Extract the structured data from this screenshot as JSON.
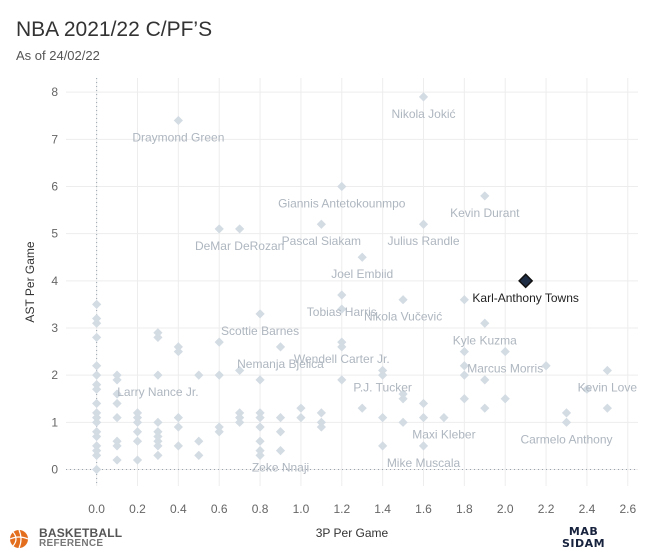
{
  "title": "NBA 2021/22 C/PF’S",
  "subtitle": "As of 24/02/22",
  "logos": {
    "bbref_line1": "BASKETBALL",
    "bbref_line2": "REFERENCE",
    "mab_line1": "MAB",
    "mab_line2": "SIDAM"
  },
  "colors": {
    "point": "#d3dbe3",
    "label": "#aeb6bf",
    "highlight_fill": "#1f2d44",
    "highlight_stroke": "#111111",
    "grid": "#ededed",
    "bbref_icon": "#e36f1e"
  },
  "chart_data": {
    "type": "scatter",
    "title": "NBA 2021/22 C/PF’S",
    "subtitle": "As of 24/02/22",
    "xlabel": "3P Per Game",
    "ylabel": "AST Per Game",
    "xlim": [
      -0.15,
      2.65
    ],
    "ylim": [
      -0.35,
      8.3
    ],
    "xticks": [
      "0.0",
      "0.2",
      "0.4",
      "0.6",
      "0.8",
      "1.0",
      "1.2",
      "1.4",
      "1.6",
      "1.8",
      "2.0",
      "2.2",
      "2.4",
      "2.6"
    ],
    "yticks": [
      "0",
      "1",
      "2",
      "3",
      "4",
      "5",
      "6",
      "7",
      "8"
    ],
    "grid": true,
    "highlight": {
      "name": "Karl-Anthony Towns",
      "x": 2.1,
      "y": 4.0
    },
    "labeled": [
      {
        "name": "Nikola Jokić",
        "x": 1.6,
        "y": 7.9
      },
      {
        "name": "Draymond Green",
        "x": 0.4,
        "y": 7.4
      },
      {
        "name": "Giannis Antetokounmpo",
        "x": 1.2,
        "y": 6.0
      },
      {
        "name": "Kevin Durant",
        "x": 1.9,
        "y": 5.8
      },
      {
        "name": "Pascal Siakam",
        "x": 1.1,
        "y": 5.2
      },
      {
        "name": "Julius Randle",
        "x": 1.6,
        "y": 5.2
      },
      {
        "name": "DeMar DeRozan",
        "x": 0.7,
        "y": 5.1
      },
      {
        "name": "Joel Embiid",
        "x": 1.3,
        "y": 4.5
      },
      {
        "name": "Tobias Harris",
        "x": 1.2,
        "y": 3.7
      },
      {
        "name": "Nikola Vučević",
        "x": 1.5,
        "y": 3.6
      },
      {
        "name": "Scottie Barnes",
        "x": 0.8,
        "y": 3.3
      },
      {
        "name": "Kyle Kuzma",
        "x": 1.9,
        "y": 3.1
      },
      {
        "name": "Wendell Carter Jr.",
        "x": 1.2,
        "y": 2.7
      },
      {
        "name": "Nemanja Bjelica",
        "x": 0.9,
        "y": 2.6
      },
      {
        "name": "Marcus Morris",
        "x": 2.0,
        "y": 2.5
      },
      {
        "name": "P.J. Tucker",
        "x": 1.4,
        "y": 2.1
      },
      {
        "name": "Kevin Love",
        "x": 2.5,
        "y": 2.1
      },
      {
        "name": "Larry Nance Jr.",
        "x": 0.3,
        "y": 2.0
      },
      {
        "name": "Maxi Kleber",
        "x": 1.7,
        "y": 1.1
      },
      {
        "name": "Carmelo Anthony",
        "x": 2.3,
        "y": 1.0
      },
      {
        "name": "Zeke Nnaji",
        "x": 0.9,
        "y": 0.4
      },
      {
        "name": "Mike Muscala",
        "x": 1.6,
        "y": 0.5
      }
    ],
    "points": [
      [
        0.0,
        3.5
      ],
      [
        0.0,
        3.2
      ],
      [
        0.0,
        3.1
      ],
      [
        0.0,
        2.8
      ],
      [
        0.0,
        2.2
      ],
      [
        0.0,
        2.0
      ],
      [
        0.0,
        1.8
      ],
      [
        0.0,
        1.7
      ],
      [
        0.0,
        1.4
      ],
      [
        0.0,
        1.2
      ],
      [
        0.0,
        1.1
      ],
      [
        0.0,
        1.0
      ],
      [
        0.0,
        0.8
      ],
      [
        0.0,
        0.7
      ],
      [
        0.0,
        0.5
      ],
      [
        0.0,
        0.4
      ],
      [
        0.0,
        0.3
      ],
      [
        0.0,
        0.0
      ],
      [
        0.1,
        2.0
      ],
      [
        0.1,
        1.9
      ],
      [
        0.1,
        1.6
      ],
      [
        0.1,
        1.4
      ],
      [
        0.1,
        1.1
      ],
      [
        0.1,
        0.6
      ],
      [
        0.1,
        0.5
      ],
      [
        0.1,
        0.2
      ],
      [
        0.2,
        1.2
      ],
      [
        0.2,
        1.1
      ],
      [
        0.2,
        1.0
      ],
      [
        0.2,
        0.8
      ],
      [
        0.2,
        0.6
      ],
      [
        0.2,
        0.2
      ],
      [
        0.3,
        2.9
      ],
      [
        0.3,
        2.8
      ],
      [
        0.3,
        1.0
      ],
      [
        0.3,
        0.8
      ],
      [
        0.3,
        0.7
      ],
      [
        0.3,
        0.6
      ],
      [
        0.3,
        0.5
      ],
      [
        0.3,
        0.3
      ],
      [
        0.4,
        2.6
      ],
      [
        0.4,
        2.5
      ],
      [
        0.4,
        1.1
      ],
      [
        0.4,
        0.9
      ],
      [
        0.4,
        0.5
      ],
      [
        0.5,
        2.0
      ],
      [
        0.5,
        0.6
      ],
      [
        0.5,
        0.3
      ],
      [
        0.6,
        2.7
      ],
      [
        0.6,
        2.0
      ],
      [
        0.6,
        0.9
      ],
      [
        0.6,
        0.8
      ],
      [
        0.6,
        5.1
      ],
      [
        0.7,
        2.1
      ],
      [
        0.7,
        1.2
      ],
      [
        0.7,
        1.1
      ],
      [
        0.7,
        1.0
      ],
      [
        0.8,
        1.9
      ],
      [
        0.8,
        1.2
      ],
      [
        0.8,
        1.1
      ],
      [
        0.8,
        0.9
      ],
      [
        0.8,
        0.6
      ],
      [
        0.8,
        0.4
      ],
      [
        0.8,
        0.3
      ],
      [
        0.9,
        1.1
      ],
      [
        0.9,
        0.8
      ],
      [
        1.0,
        1.3
      ],
      [
        1.0,
        1.1
      ],
      [
        1.1,
        1.2
      ],
      [
        1.1,
        1.0
      ],
      [
        1.1,
        0.9
      ],
      [
        1.2,
        3.4
      ],
      [
        1.2,
        2.6
      ],
      [
        1.2,
        1.9
      ],
      [
        1.3,
        1.3
      ],
      [
        1.4,
        2.0
      ],
      [
        1.4,
        1.1
      ],
      [
        1.4,
        0.5
      ],
      [
        1.5,
        1.6
      ],
      [
        1.5,
        1.5
      ],
      [
        1.5,
        1.0
      ],
      [
        1.6,
        1.4
      ],
      [
        1.6,
        1.1
      ],
      [
        1.8,
        3.6
      ],
      [
        1.8,
        2.5
      ],
      [
        1.8,
        2.2
      ],
      [
        1.8,
        2.0
      ],
      [
        1.8,
        1.5
      ],
      [
        1.9,
        1.9
      ],
      [
        1.9,
        1.3
      ],
      [
        2.0,
        1.5
      ],
      [
        2.2,
        2.2
      ],
      [
        2.3,
        1.2
      ],
      [
        2.4,
        1.7
      ],
      [
        2.5,
        1.3
      ]
    ]
  }
}
